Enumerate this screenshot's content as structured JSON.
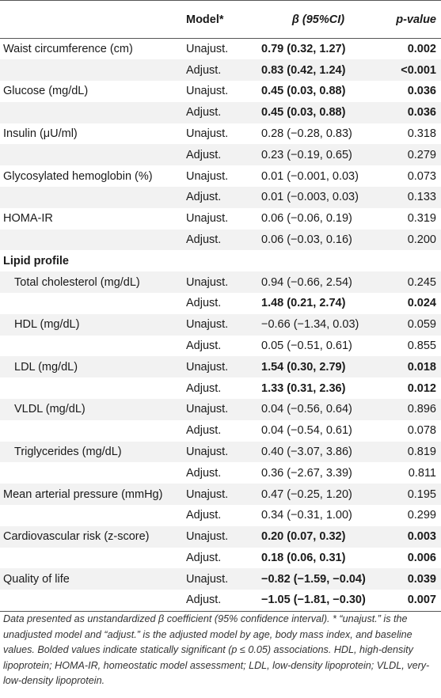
{
  "header": {
    "variable": "",
    "model": "Model*",
    "beta": "β (95%CI)",
    "pvalue": "p-value"
  },
  "rows": [
    {
      "variable": "Waist circumference (cm)",
      "model": "Unajust.",
      "beta": "0.79 (0.32, 1.27)",
      "p": "0.002",
      "bold": true,
      "indent": false
    },
    {
      "variable": "",
      "model": "Adjust.",
      "beta": "0.83 (0.42, 1.24)",
      "p": "<0.001",
      "bold": true,
      "indent": false
    },
    {
      "variable": "Glucose (mg/dL)",
      "model": "Unajust.",
      "beta": "0.45 (0.03, 0.88)",
      "p": "0.036",
      "bold": true,
      "indent": false
    },
    {
      "variable": "",
      "model": "Adjust.",
      "beta": "0.45 (0.03, 0.88)",
      "p": "0.036",
      "bold": true,
      "indent": false
    },
    {
      "variable": "Insulin (μU/ml)",
      "model": "Unajust.",
      "beta": "0.28 (−0.28, 0.83)",
      "p": "0.318",
      "bold": false,
      "indent": false
    },
    {
      "variable": "",
      "model": "Adjust.",
      "beta": "0.23 (−0.19, 0.65)",
      "p": "0.279",
      "bold": false,
      "indent": false
    },
    {
      "variable": "Glycosylated hemoglobin (%)",
      "model": "Unajust.",
      "beta": "0.01 (−0.001, 0.03)",
      "p": "0.073",
      "bold": false,
      "indent": false
    },
    {
      "variable": "",
      "model": "Adjust.",
      "beta": "0.01 (−0.003, 0.03)",
      "p": "0.133",
      "bold": false,
      "indent": false
    },
    {
      "variable": "HOMA-IR",
      "model": "Unajust.",
      "beta": "0.06 (−0.06, 0.19)",
      "p": "0.319",
      "bold": false,
      "indent": false
    },
    {
      "variable": "",
      "model": "Adjust.",
      "beta": "0.06 (−0.03, 0.16)",
      "p": "0.200",
      "bold": false,
      "indent": false
    },
    {
      "section": "Lipid profile"
    },
    {
      "variable": "Total cholesterol (mg/dL)",
      "model": "Unajust.",
      "beta": "0.94 (−0.66, 2.54)",
      "p": "0.245",
      "bold": false,
      "indent": true
    },
    {
      "variable": "",
      "model": "Adjust.",
      "beta": "1.48 (0.21, 2.74)",
      "p": "0.024",
      "bold": true,
      "indent": true
    },
    {
      "variable": "HDL (mg/dL)",
      "model": "Unajust.",
      "beta": "−0.66 (−1.34, 0.03)",
      "p": "0.059",
      "bold": false,
      "indent": true
    },
    {
      "variable": "",
      "model": "Adjust.",
      "beta": "0.05 (−0.51, 0.61)",
      "p": "0.855",
      "bold": false,
      "indent": true
    },
    {
      "variable": "LDL (mg/dL)",
      "model": "Unajust.",
      "beta": "1.54 (0.30, 2.79)",
      "p": "0.018",
      "bold": true,
      "indent": true
    },
    {
      "variable": "",
      "model": "Adjust.",
      "beta": "1.33 (0.31, 2.36)",
      "p": "0.012",
      "bold": true,
      "indent": true
    },
    {
      "variable": "VLDL (mg/dL)",
      "model": "Unajust.",
      "beta": "0.04 (−0.56, 0.64)",
      "p": "0.896",
      "bold": false,
      "indent": true
    },
    {
      "variable": "",
      "model": "Adjust.",
      "beta": "0.04 (−0.54, 0.61)",
      "p": "0.078",
      "bold": false,
      "indent": true
    },
    {
      "variable": "Triglycerides (mg/dL)",
      "model": "Unajust.",
      "beta": "0.40 (−3.07, 3.86)",
      "p": "0.819",
      "bold": false,
      "indent": true
    },
    {
      "variable": "",
      "model": "Adjust.",
      "beta": "0.36 (−2.67, 3.39)",
      "p": "0.811",
      "bold": false,
      "indent": true
    },
    {
      "variable": "Mean arterial pressure (mmHg)",
      "model": "Unajust.",
      "beta": "0.47 (−0.25, 1.20)",
      "p": "0.195",
      "bold": false,
      "indent": false
    },
    {
      "variable": "",
      "model": "Adjust.",
      "beta": "0.34 (−0.31, 1.00)",
      "p": "0.299",
      "bold": false,
      "indent": false
    },
    {
      "variable": "Cardiovascular risk (z-score)",
      "model": "Unajust.",
      "beta": "0.20 (0.07, 0.32)",
      "p": "0.003",
      "bold": true,
      "indent": false
    },
    {
      "variable": "",
      "model": "Adjust.",
      "beta": "0.18 (0.06, 0.31)",
      "p": "0.006",
      "bold": true,
      "indent": false
    },
    {
      "variable": "Quality of life",
      "model": "Unajust.",
      "beta": "−0.82 (−1.59, −0.04)",
      "p": "0.039",
      "bold": true,
      "indent": false
    },
    {
      "variable": "",
      "model": "Adjust.",
      "beta": "−1.05 (−1.81, −0.30)",
      "p": "0.007",
      "bold": true,
      "indent": false
    }
  ],
  "footnote": "Data presented as unstandardized β coefficient (95% confidence interval). * “unajust.” is the unadjusted model and “adjust.” is the adjusted model by age, body mass index, and baseline values. Bolded values indicate statically significant (p ≤ 0.05) associations. HDL, high-density lipoprotein; HOMA-IR, homeostatic model assessment; LDL, low-density lipoprotein; VLDL, very-low-density lipoprotein."
}
